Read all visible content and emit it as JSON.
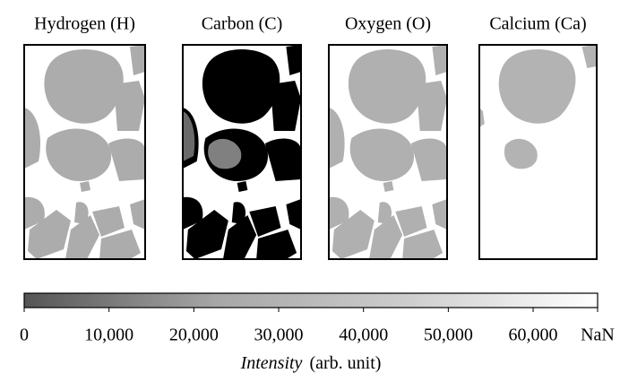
{
  "chart_data": {
    "type": "image-grid",
    "panels": [
      {
        "title": "Hydrogen (H)"
      },
      {
        "title": "Carbon (C)"
      },
      {
        "title": "Oxygen (O)"
      },
      {
        "title": "Calcium (Ca)"
      }
    ],
    "colorbar": {
      "lim": [
        0,
        67600
      ],
      "ticks": [
        0,
        {
          "value": 10000,
          "label": "10,000"
        },
        {
          "value": 20000,
          "label": "20,000"
        },
        {
          "value": 30000,
          "label": "30,000"
        },
        {
          "value": 40000,
          "label": "40,000"
        },
        {
          "value": 50000,
          "label": "50,000"
        },
        {
          "value": 60000,
          "label": "60,000"
        },
        {
          "value": 67600,
          "label": "NaN"
        }
      ],
      "colors": [
        "#555555",
        "#a6a6a6",
        "#cdcdcd",
        "#ffffff"
      ],
      "label_italic": "Intensity",
      "label_rest": "(arb. unit)"
    }
  }
}
